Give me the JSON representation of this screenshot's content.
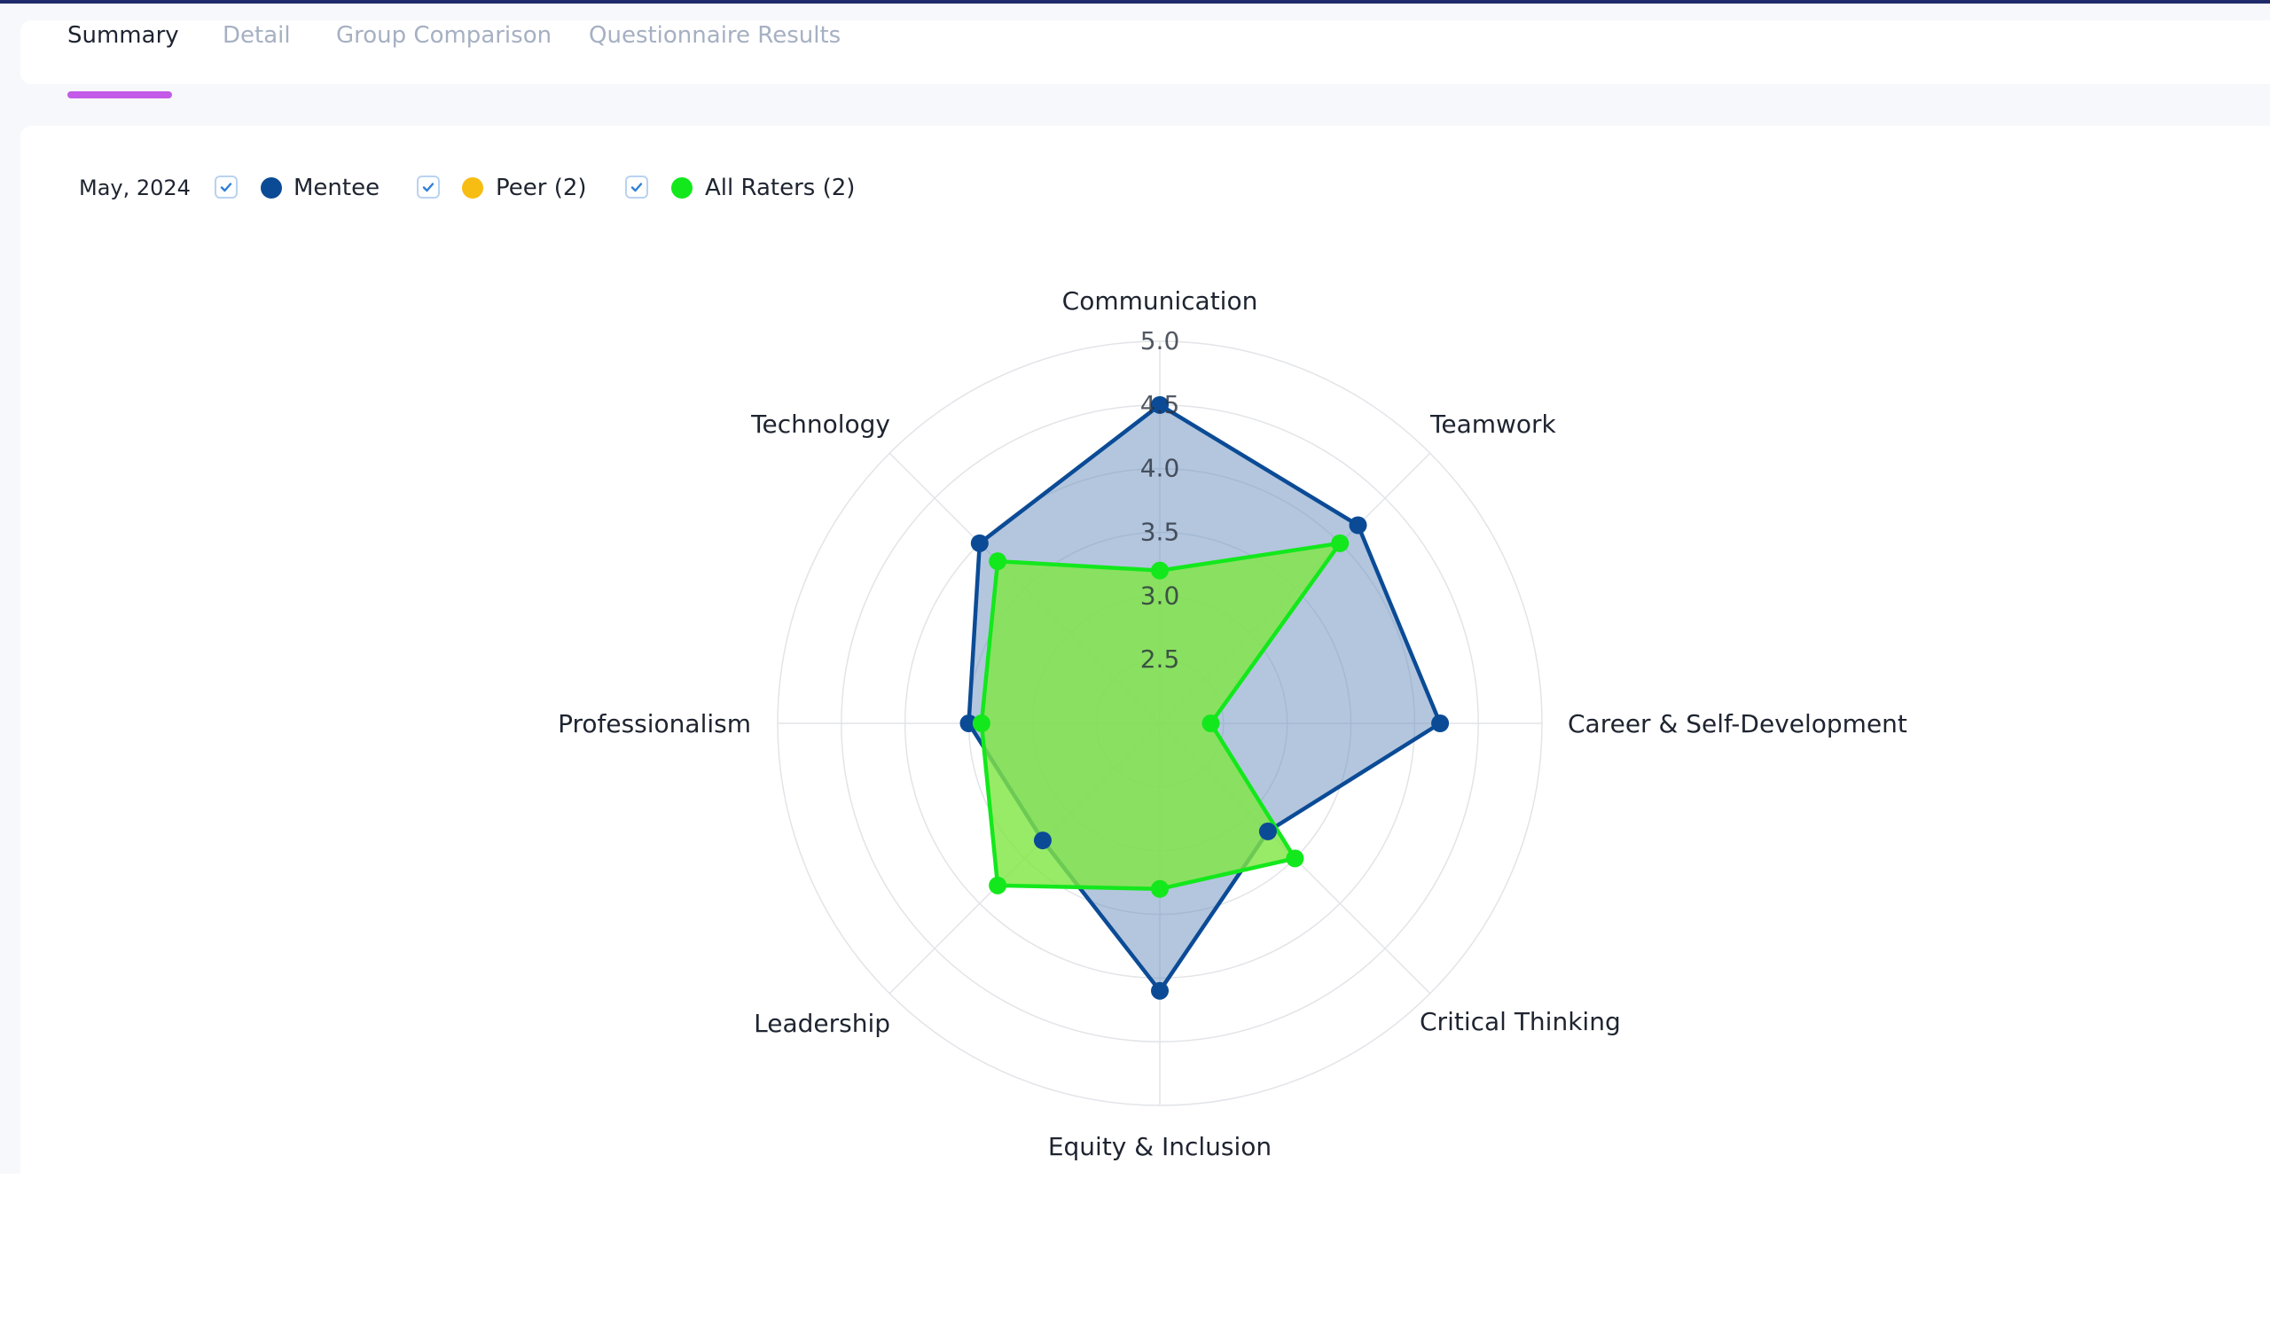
{
  "tabs": [
    {
      "label": "Summary",
      "active": true
    },
    {
      "label": "Detail",
      "active": false
    },
    {
      "label": "Group Comparison",
      "active": false
    },
    {
      "label": "Questionnaire Results",
      "active": false
    }
  ],
  "legend": {
    "date": "May, 2024",
    "items": [
      {
        "label": "Mentee",
        "color": "#0b4b96",
        "checked": true
      },
      {
        "label": "Peer (2)",
        "color": "#f7bd13",
        "checked": true
      },
      {
        "label": "All Raters (2)",
        "color": "#13e81c",
        "checked": true
      }
    ]
  },
  "chart_data": {
    "type": "radar",
    "axes": [
      "Communication",
      "Teamwork",
      "Career & Self-Development",
      "Critical Thinking",
      "Equity & Inclusion",
      "Leadership",
      "Professionalism",
      "Technology"
    ],
    "radial_ticks": [
      "2.5",
      "3.0",
      "3.5",
      "4.0",
      "4.5",
      "5.0"
    ],
    "rlim": [
      2.0,
      5.0
    ],
    "series": [
      {
        "name": "Mentee",
        "color": "#0b4b96",
        "fill": "rgba(104,141,189,0.5)",
        "values": [
          4.5,
          4.2,
          4.2,
          3.2,
          4.1,
          3.3,
          3.5,
          4.0
        ]
      },
      {
        "name": "Peer (2)",
        "color": "#f7bd13",
        "fill": "rgba(170,235,90,0.6)",
        "values": [
          3.2,
          4.0,
          2.4,
          3.5,
          3.3,
          3.8,
          3.4,
          3.8
        ]
      },
      {
        "name": "All Raters (2)",
        "color": "#13e81c",
        "fill": "rgba(110,228,60,0.55)",
        "values": [
          3.2,
          4.0,
          2.4,
          3.5,
          3.3,
          3.8,
          3.4,
          3.8
        ]
      }
    ]
  }
}
